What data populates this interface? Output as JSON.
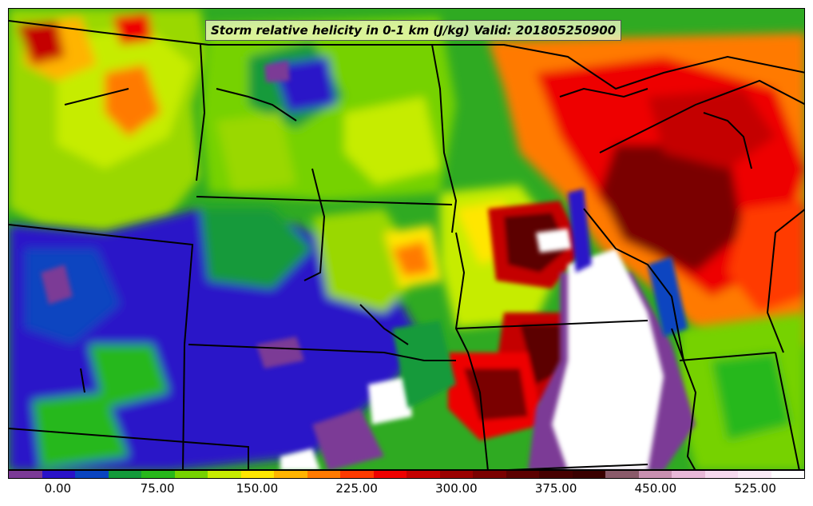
{
  "title": "Storm relative helicity in 0-1 km (J/kg) Valid: 201805250900",
  "colorbar": {
    "tick_labels": [
      "0.00",
      "75.00",
      "150.00",
      "225.00",
      "300.00",
      "375.00",
      "450.00",
      "525.00"
    ],
    "tick_values": [
      0,
      75,
      150,
      225,
      300,
      375,
      450,
      525
    ],
    "range": [
      -37.5,
      562.5
    ],
    "step": 25,
    "colors": [
      "#7b3a96",
      "#2a12c8",
      "#0a44c0",
      "#139a3a",
      "#27b81a",
      "#76d200",
      "#c6ec00",
      "#ffe600",
      "#ffb400",
      "#ff7a00",
      "#ff3a00",
      "#ee0000",
      "#c40000",
      "#9a0000",
      "#7a0000",
      "#5c0000",
      "#460000",
      "#3a0000",
      "#8a5a6a",
      "#c890b0",
      "#e8b8d8",
      "#f6d8ee",
      "#faeaf6",
      "#ffffff"
    ]
  },
  "map": {
    "field_colors": {
      "negative": "#7b3a96",
      "low": "#2a12c8",
      "moderate_low": "#27b81a",
      "moderate": "#c6ec00",
      "high": "#ff7a00",
      "very_high": "#c40000",
      "extreme": "#5c0000",
      "off_scale": "#ffffff"
    },
    "boundary_color": "#000000"
  }
}
